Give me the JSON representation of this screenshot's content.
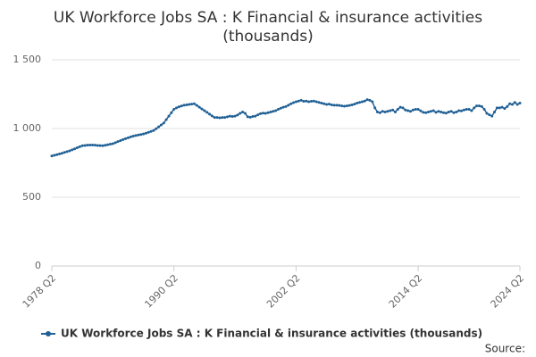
{
  "chart_data": {
    "type": "line",
    "title": "UK Workforce Jobs SA : K Financial & insurance activities",
    "subtitle": "(thousands)",
    "source": "Source:",
    "categories": [
      "1978 Q2",
      null,
      null,
      null,
      null,
      null,
      null,
      null,
      null,
      null,
      null,
      null,
      null,
      null,
      null,
      null,
      null,
      null,
      null,
      null,
      null,
      null,
      null,
      null,
      null,
      null,
      null,
      null,
      null,
      null,
      null,
      null,
      null,
      null,
      null,
      null,
      null,
      null,
      null,
      null,
      null,
      null,
      null,
      null,
      null,
      null,
      null,
      null,
      "1990 Q2",
      null,
      null,
      null,
      null,
      null,
      null,
      null,
      null,
      null,
      null,
      null,
      null,
      null,
      null,
      null,
      null,
      null,
      null,
      null,
      null,
      null,
      null,
      null,
      null,
      null,
      null,
      null,
      null,
      null,
      null,
      null,
      null,
      null,
      null,
      null,
      null,
      null,
      null,
      null,
      null,
      null,
      null,
      null,
      null,
      null,
      null,
      null,
      "2002 Q2",
      null,
      null,
      null,
      null,
      null,
      null,
      null,
      null,
      null,
      null,
      null,
      null,
      null,
      null,
      null,
      null,
      null,
      null,
      null,
      null,
      null,
      null,
      null,
      null,
      null,
      null,
      null,
      null,
      null,
      null,
      null,
      null,
      null,
      null,
      null,
      null,
      null,
      null,
      null,
      null,
      null,
      null,
      null,
      null,
      null,
      null,
      null,
      "2014 Q2",
      null,
      null,
      null,
      null,
      null,
      null,
      null,
      null,
      null,
      null,
      null,
      null,
      null,
      null,
      null,
      null,
      null,
      null,
      null,
      null,
      null,
      null,
      null,
      null,
      null,
      null,
      null,
      null,
      null,
      null,
      null,
      null,
      null,
      null,
      null,
      null,
      null,
      null,
      null,
      "2024 Q2"
    ],
    "series": [
      {
        "name": "UK Workforce Jobs SA : K Financial & insurance activities (thousands)",
        "color": "#206095",
        "values": [
          800,
          805,
          810,
          815,
          820,
          826,
          832,
          838,
          845,
          852,
          860,
          868,
          875,
          877,
          879,
          880,
          880,
          879,
          877,
          876,
          875,
          878,
          882,
          886,
          890,
          897,
          905,
          912,
          920,
          926,
          933,
          939,
          945,
          949,
          953,
          956,
          960,
          966,
          972,
          979,
          985,
          998,
          1012,
          1026,
          1040,
          1065,
          1090,
          1115,
          1140,
          1150,
          1158,
          1164,
          1170,
          1172,
          1175,
          1178,
          1180,
          1168,
          1155,
          1142,
          1130,
          1118,
          1105,
          1092,
          1080,
          1080,
          1078,
          1080,
          1080,
          1085,
          1090,
          1088,
          1090,
          1098,
          1110,
          1120,
          1110,
          1085,
          1082,
          1088,
          1090,
          1100,
          1108,
          1112,
          1110,
          1115,
          1120,
          1125,
          1130,
          1140,
          1148,
          1155,
          1160,
          1170,
          1180,
          1188,
          1195,
          1200,
          1205,
          1198,
          1200,
          1195,
          1198,
          1200,
          1195,
          1190,
          1185,
          1180,
          1175,
          1178,
          1172,
          1170,
          1170,
          1168,
          1165,
          1162,
          1165,
          1168,
          1172,
          1178,
          1185,
          1190,
          1195,
          1200,
          1210,
          1205,
          1195,
          1150,
          1120,
          1115,
          1125,
          1120,
          1125,
          1130,
          1135,
          1120,
          1140,
          1155,
          1150,
          1135,
          1130,
          1125,
          1135,
          1140,
          1140,
          1128,
          1118,
          1115,
          1120,
          1125,
          1130,
          1118,
          1125,
          1120,
          1115,
          1112,
          1120,
          1125,
          1115,
          1120,
          1130,
          1128,
          1135,
          1140,
          1140,
          1130,
          1150,
          1165,
          1165,
          1160,
          1140,
          1110,
          1100,
          1090,
          1120,
          1150,
          1150,
          1155,
          1145,
          1160,
          1180,
          1175,
          1190,
          1175,
          1185
        ]
      }
    ],
    "ylim": [
      0,
      1500
    ],
    "yticks": [
      0,
      500,
      {
        "value": 1000,
        "label": "1 000"
      },
      {
        "value": 1500,
        "label": "1 500"
      }
    ],
    "grid": true,
    "legend": "bottom"
  }
}
